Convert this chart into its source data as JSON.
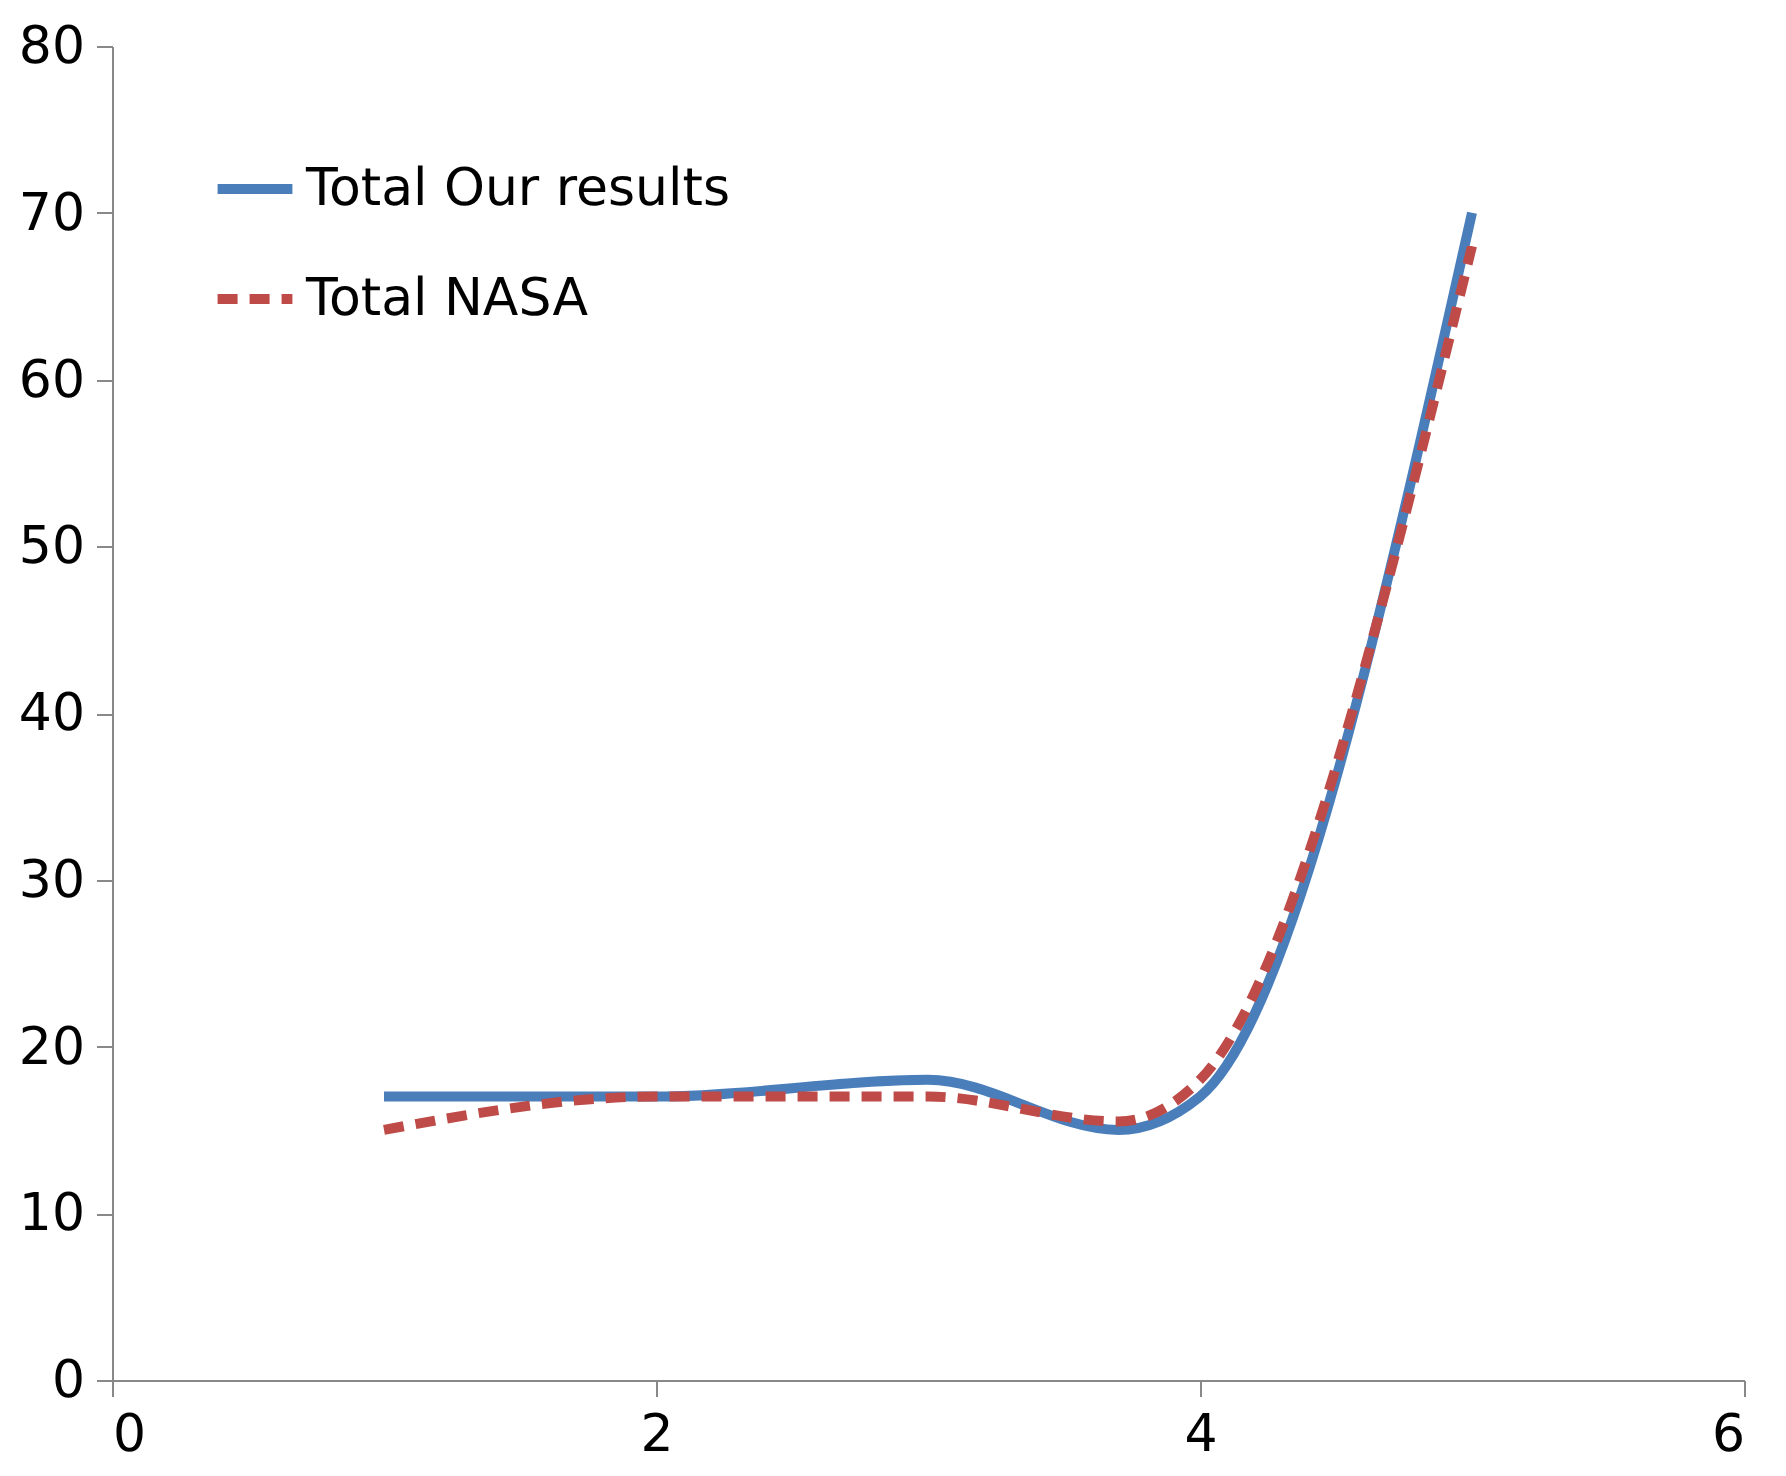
{
  "chart_data": {
    "type": "line",
    "xlim": [
      0,
      6
    ],
    "xticks": [
      0,
      2,
      4,
      6
    ],
    "ylim": [
      0,
      80
    ],
    "yticks": [
      0,
      10,
      20,
      30,
      40,
      50,
      60,
      70,
      80
    ],
    "grid": false,
    "legend": "top left",
    "marker": "none",
    "series": [
      {
        "name": "Total Our results",
        "color": "#4a7ebb",
        "line_style": "solid",
        "x": [
          1,
          2,
          3,
          3.7,
          4,
          5
        ],
        "values": [
          17,
          17,
          18,
          15,
          17,
          70
        ]
      },
      {
        "name": "Total NASA",
        "color": "#be4b48",
        "line_style": "dashed",
        "x": [
          1,
          2,
          3,
          3.7,
          4,
          5
        ],
        "values": [
          15,
          17,
          17,
          15.5,
          18,
          68
        ]
      }
    ]
  }
}
